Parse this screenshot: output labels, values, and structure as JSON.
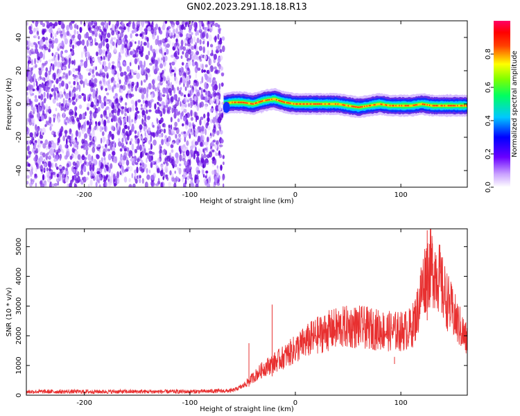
{
  "figure": {
    "title": "GN02.2023.291.18.18.R13"
  },
  "chart_data": [
    {
      "type": "heatmap",
      "xlabel": "Height of straight line (km)",
      "ylabel": "Frequency (Hz)",
      "xlim": [
        -255,
        163
      ],
      "ylim": [
        -50,
        50
      ],
      "x_ticks": [
        -200,
        -100,
        0,
        100
      ],
      "y_ticks": [
        -40,
        -20,
        0,
        20,
        40
      ],
      "colorbar": {
        "label": "Normalized spectral amplitude",
        "range": [
          0,
          1
        ],
        "ticks": [
          "0.0",
          "0.2",
          "0.4",
          "0.6",
          "0.8"
        ],
        "tick_values": [
          0.0,
          0.2,
          0.4,
          0.6,
          0.8
        ],
        "colors": [
          "#ffffff",
          "#8a2be2",
          "#0000ff",
          "#00ffff",
          "#00ff00",
          "#ffff00",
          "#ff0000",
          "#ff0080"
        ]
      },
      "noise_region": {
        "x_range": [
          -255,
          -68
        ],
        "freq_range": [
          -50,
          50
        ],
        "level": 0.1
      },
      "signal_ridge": {
        "x": [
          -68,
          -60,
          -50,
          -40,
          -30,
          -20,
          -10,
          0,
          10,
          20,
          30,
          40,
          50,
          60,
          70,
          80,
          90,
          100,
          110,
          120,
          130,
          140,
          150,
          160
        ],
        "freq": [
          0,
          1,
          1,
          0,
          2,
          3,
          1,
          0,
          0,
          0,
          0,
          0,
          -1,
          -2,
          -1,
          0,
          -1,
          -1,
          -1,
          0,
          -1,
          -1,
          -1,
          -1
        ],
        "peak_amplitude": 0.95
      }
    },
    {
      "type": "line",
      "xlabel": "Height of straight line (km)",
      "ylabel": "SNR (10 * v/v)",
      "xlim": [
        -255,
        163
      ],
      "ylim": [
        0,
        5600
      ],
      "x_ticks": [
        -200,
        -100,
        0,
        100
      ],
      "y_ticks": [
        0,
        1000,
        2000,
        3000,
        4000,
        5000
      ],
      "series": [
        {
          "color": "#e83030",
          "envelope_x": [
            -255,
            -100,
            -60,
            -50,
            -40,
            -30,
            -20,
            -10,
            0,
            10,
            20,
            30,
            40,
            50,
            60,
            70,
            80,
            90,
            100,
            110,
            115,
            120,
            125,
            130,
            135,
            140,
            150,
            163
          ],
          "envelope_y": [
            120,
            120,
            150,
            300,
            600,
            900,
            1100,
            1300,
            1550,
            1800,
            2000,
            2150,
            2250,
            2300,
            2300,
            2250,
            2200,
            2150,
            2150,
            2250,
            2700,
            3600,
            4200,
            4300,
            4100,
            3500,
            2700,
            1800
          ],
          "spikes": [
            {
              "x": -22,
              "y": 3050
            },
            {
              "x": -44,
              "y": 1750
            },
            {
              "x": 125,
              "y": 5550
            },
            {
              "x": 94,
              "y": 1050
            }
          ]
        }
      ]
    }
  ]
}
